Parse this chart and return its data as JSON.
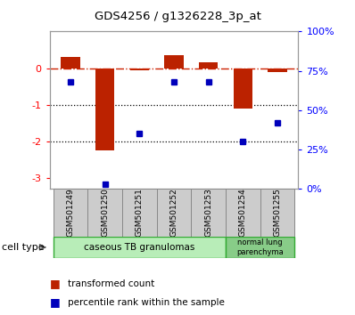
{
  "title": "GDS4256 / g1326228_3p_at",
  "samples": [
    "GSM501249",
    "GSM501250",
    "GSM501251",
    "GSM501252",
    "GSM501253",
    "GSM501254",
    "GSM501255"
  ],
  "transformed_count": [
    0.3,
    -2.25,
    -0.05,
    0.35,
    0.15,
    -1.1,
    -0.1
  ],
  "percentile_rank_raw": [
    68,
    3,
    35,
    68,
    68,
    30,
    42
  ],
  "ylim_left": [
    -3.3,
    1.0
  ],
  "ylim_right": [
    0,
    100
  ],
  "yticks_left": [
    0,
    -1,
    -2,
    -3
  ],
  "yticks_right": [
    0,
    25,
    50,
    75,
    100
  ],
  "yticklabels_right": [
    "0%",
    "25%",
    "50%",
    "75%",
    "100%"
  ],
  "bar_color": "#bb2200",
  "dot_color": "#0000bb",
  "hline_color": "#cc2200",
  "dotted_line_color": "#000000",
  "ct1_label": "caseous TB granulomas",
  "ct1_color": "#b8edb8",
  "ct2_label": "normal lung\nparenchyma",
  "ct2_color": "#88cc88",
  "ct_border_color": "#33aa33",
  "legend_bar_label": "transformed count",
  "legend_dot_label": "percentile rank within the sample",
  "cell_type_label": "cell type",
  "background_color": "#ffffff",
  "tick_box_color": "#cccccc",
  "tick_box_edge": "#888888"
}
